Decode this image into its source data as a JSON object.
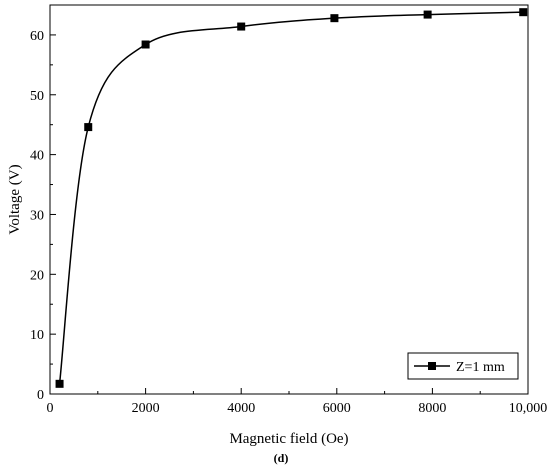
{
  "chart_data": {
    "type": "line",
    "title": "",
    "xlabel": "Magnetic field (Oe)",
    "ylabel": "Voltage (V)",
    "panel_label": "(d)",
    "xlim": [
      0,
      10000
    ],
    "ylim": [
      0,
      65
    ],
    "xticks": [
      0,
      2000,
      4000,
      6000,
      8000,
      10000
    ],
    "xtick_labels": [
      "0",
      "2000",
      "4000",
      "6000",
      "8000",
      "10,000"
    ],
    "yticks": [
      0,
      10,
      20,
      30,
      40,
      50,
      60
    ],
    "ytick_labels": [
      "0",
      "10",
      "20",
      "30",
      "40",
      "50",
      "60"
    ],
    "grid": false,
    "legend_position": "bottom-right",
    "series": [
      {
        "name": "Z=1 mm",
        "color": "#000000",
        "marker": "square",
        "smooth": true,
        "x": [
          200,
          800,
          2000,
          4000,
          5950,
          7900,
          9900
        ],
        "y": [
          1.7,
          44.6,
          58.4,
          61.4,
          62.8,
          63.4,
          63.8
        ]
      }
    ]
  }
}
